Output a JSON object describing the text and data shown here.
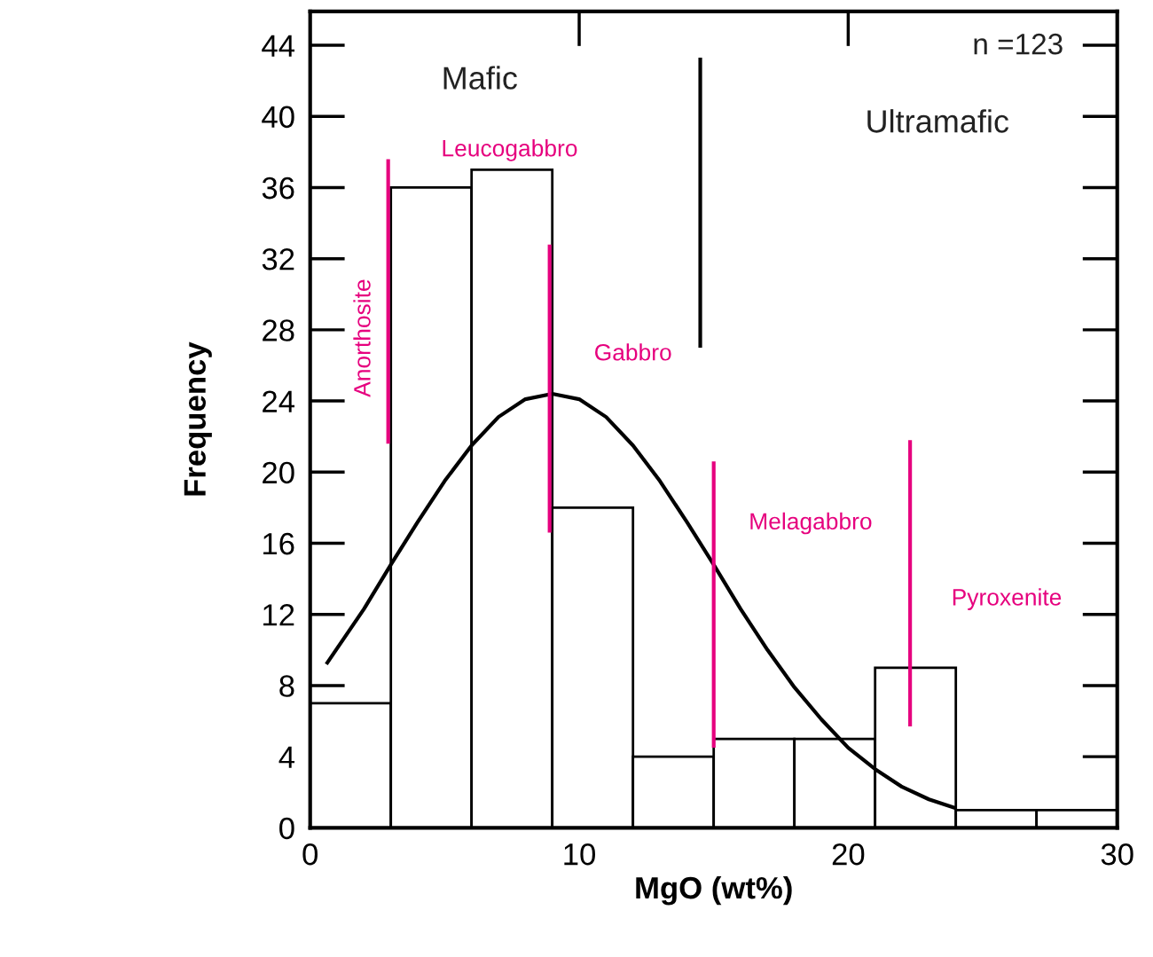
{
  "chart_data": {
    "type": "histogram",
    "xlabel": "MgO (wt%)",
    "ylabel": "Frequency",
    "bins": [
      0,
      3,
      6,
      9,
      12,
      15,
      18,
      21,
      24,
      27,
      30
    ],
    "values": [
      7,
      36,
      37,
      18,
      4,
      5,
      5,
      9,
      1,
      1
    ],
    "color": "#ffffff",
    "series": [
      {
        "type": "line",
        "color": "#000000",
        "x": [
          0.6,
          2,
          3,
          4,
          5,
          6,
          7,
          8,
          9,
          10,
          11,
          12,
          13,
          14,
          15,
          16,
          17,
          18,
          19,
          20,
          21,
          22,
          23,
          24
        ],
        "values": [
          9.2,
          12.3,
          14.8,
          17.2,
          19.5,
          21.5,
          23.1,
          24.1,
          24.4,
          24.1,
          23.1,
          21.5,
          19.5,
          17.2,
          14.8,
          12.3,
          10.0,
          7.9,
          6.1,
          4.5,
          3.3,
          2.3,
          1.6,
          1.1
        ]
      },
      {
        "type": "line",
        "color": "#000000",
        "x": [
          14.5,
          14.5
        ],
        "values": [
          27,
          43.3
        ]
      },
      {
        "type": "line",
        "color": "#e6007e",
        "x": [
          2.9,
          2.9
        ],
        "values": [
          21.6,
          37.6
        ]
      },
      {
        "type": "line",
        "color": "#e6007e",
        "x": [
          8.9,
          8.9
        ],
        "values": [
          16.6,
          32.8
        ]
      },
      {
        "type": "line",
        "color": "#e6007e",
        "x": [
          15,
          15
        ],
        "values": [
          4.5,
          20.6
        ]
      },
      {
        "type": "line",
        "color": "#e6007e",
        "x": [
          22.3,
          22.3
        ],
        "values": [
          5.7,
          21.8
        ]
      }
    ],
    "annotations": [
      "Mafic",
      "Ultramafic",
      "n =123",
      "Leucogabbro",
      "Anorthosite",
      "Gabbro",
      "Melagabbro",
      "Pyroxenite"
    ],
    "xlim": [
      0,
      30
    ],
    "xticks": [
      0,
      10,
      20,
      30
    ],
    "ylim": [
      0,
      45.9
    ],
    "yticks": [
      0,
      4,
      8,
      12,
      16,
      20,
      24,
      28,
      32,
      36,
      40,
      44
    ],
    "grid": false,
    "legend": false
  }
}
